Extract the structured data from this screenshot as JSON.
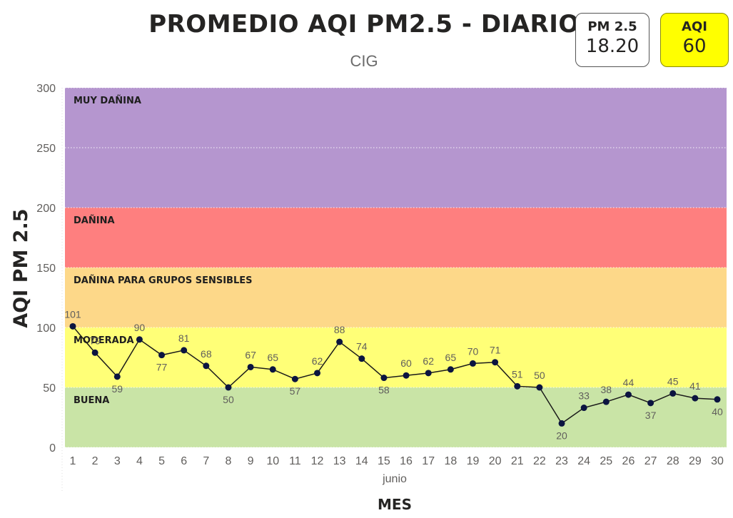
{
  "header": {
    "title": "PROMEDIO AQI PM2.5 - DIARIO",
    "subtitle": "CIG"
  },
  "cards": {
    "pm25": {
      "label": "PM 2.5",
      "value": "18.20",
      "bg": "#ffffff"
    },
    "aqi": {
      "label": "AQI",
      "value": "60",
      "bg": "#ffff00"
    }
  },
  "chart_data": {
    "type": "line",
    "xlabel": "MES",
    "x_group_label": "junio",
    "ylabel": "AQI PM 2.5",
    "ylim": [
      0,
      300
    ],
    "yticks": [
      0,
      50,
      100,
      150,
      200,
      250,
      300
    ],
    "x": [
      1,
      2,
      3,
      4,
      5,
      6,
      7,
      8,
      9,
      10,
      11,
      12,
      13,
      14,
      15,
      16,
      17,
      18,
      19,
      20,
      21,
      22,
      23,
      24,
      25,
      26,
      27,
      28,
      29,
      30
    ],
    "values": [
      101,
      79,
      59,
      90,
      77,
      81,
      68,
      50,
      67,
      65,
      57,
      62,
      88,
      74,
      58,
      60,
      62,
      65,
      70,
      71,
      51,
      50,
      20,
      33,
      38,
      44,
      37,
      45,
      41,
      40
    ],
    "line_color": "#1a1a1a",
    "marker_color": "#0b1440",
    "bands": [
      {
        "label": "BUENA",
        "from": 0,
        "to": 50,
        "color": "#c9e4a6"
      },
      {
        "label": "MODERADA",
        "from": 50,
        "to": 100,
        "color": "#ffff77"
      },
      {
        "label": "DAÑINA PARA GRUPOS SENSIBLES",
        "from": 100,
        "to": 150,
        "color": "#fdd889"
      },
      {
        "label": "DAÑINA",
        "from": 150,
        "to": 200,
        "color": "#fe7f7f"
      },
      {
        "label": "MUY DAÑINA",
        "from": 200,
        "to": 300,
        "color": "#b596cf"
      }
    ],
    "grid": true
  }
}
